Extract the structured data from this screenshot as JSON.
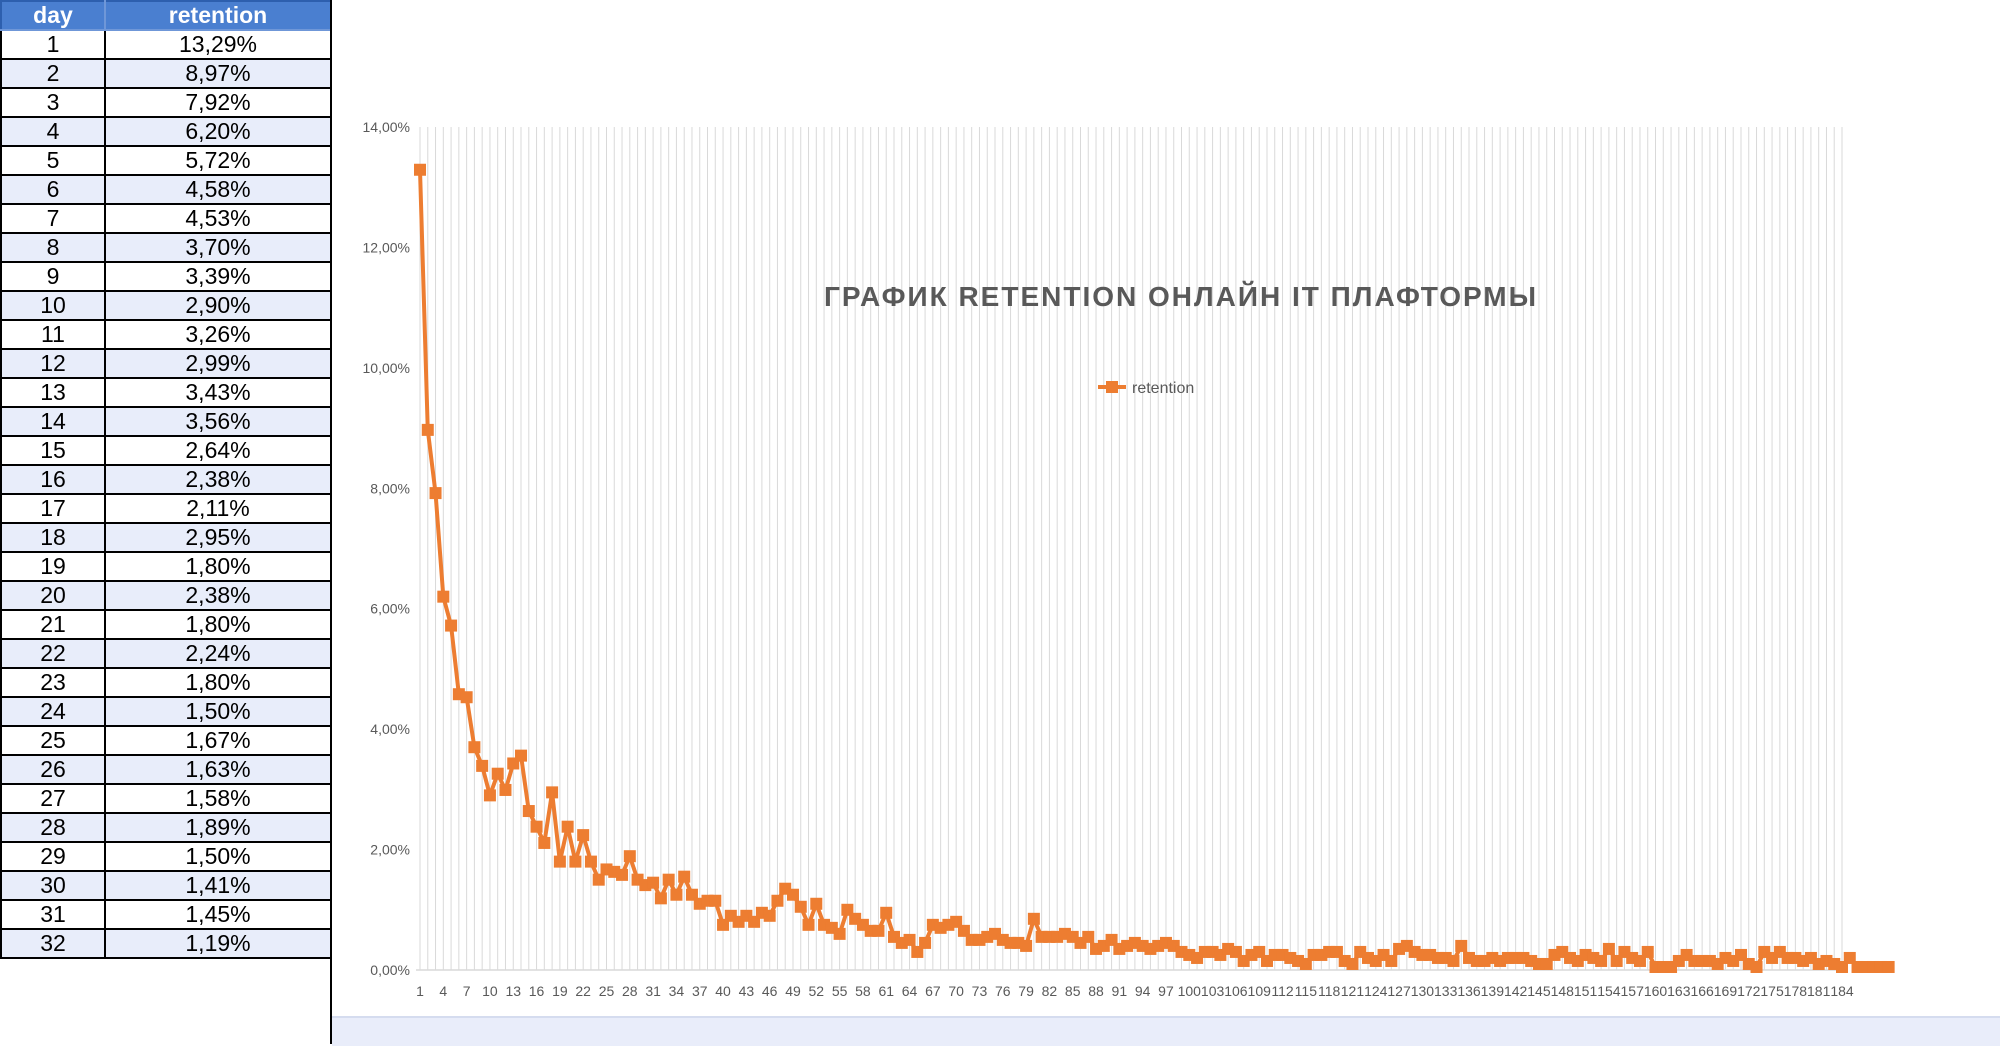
{
  "table": {
    "headers": {
      "day": "day",
      "retention": "retention"
    },
    "rows": [
      {
        "day": "1",
        "retention": "13,29%"
      },
      {
        "day": "2",
        "retention": "8,97%"
      },
      {
        "day": "3",
        "retention": "7,92%"
      },
      {
        "day": "4",
        "retention": "6,20%"
      },
      {
        "day": "5",
        "retention": "5,72%"
      },
      {
        "day": "6",
        "retention": "4,58%"
      },
      {
        "day": "7",
        "retention": "4,53%"
      },
      {
        "day": "8",
        "retention": "3,70%"
      },
      {
        "day": "9",
        "retention": "3,39%"
      },
      {
        "day": "10",
        "retention": "2,90%"
      },
      {
        "day": "11",
        "retention": "3,26%"
      },
      {
        "day": "12",
        "retention": "2,99%"
      },
      {
        "day": "13",
        "retention": "3,43%"
      },
      {
        "day": "14",
        "retention": "3,56%"
      },
      {
        "day": "15",
        "retention": "2,64%"
      },
      {
        "day": "16",
        "retention": "2,38%"
      },
      {
        "day": "17",
        "retention": "2,11%"
      },
      {
        "day": "18",
        "retention": "2,95%"
      },
      {
        "day": "19",
        "retention": "1,80%"
      },
      {
        "day": "20",
        "retention": "2,38%"
      },
      {
        "day": "21",
        "retention": "1,80%"
      },
      {
        "day": "22",
        "retention": "2,24%"
      },
      {
        "day": "23",
        "retention": "1,80%"
      },
      {
        "day": "24",
        "retention": "1,50%"
      },
      {
        "day": "25",
        "retention": "1,67%"
      },
      {
        "day": "26",
        "retention": "1,63%"
      },
      {
        "day": "27",
        "retention": "1,58%"
      },
      {
        "day": "28",
        "retention": "1,89%"
      },
      {
        "day": "29",
        "retention": "1,50%"
      },
      {
        "day": "30",
        "retention": "1,41%"
      },
      {
        "day": "31",
        "retention": "1,45%"
      },
      {
        "day": "32",
        "retention": "1,19%"
      }
    ]
  },
  "chart_data": {
    "type": "line",
    "title": "ГРАФИК RETENTION ОНЛАЙН  IT ПЛАФТОРМЫ",
    "xlabel": "",
    "ylabel": "",
    "ylim": [
      0,
      14
    ],
    "y_ticks": [
      "0,00%",
      "2,00%",
      "4,00%",
      "6,00%",
      "8,00%",
      "10,00%",
      "12,00%",
      "14,00%"
    ],
    "x_range": [
      1,
      184
    ],
    "x_tick_step": 3,
    "grid": "vertical",
    "legend": "top-center",
    "color": "#ed7d31",
    "marker": "square",
    "series": [
      {
        "name": "retention",
        "x_start": 1,
        "values": [
          13.29,
          8.97,
          7.92,
          6.2,
          5.72,
          4.58,
          4.53,
          3.7,
          3.39,
          2.9,
          3.26,
          2.99,
          3.43,
          3.56,
          2.64,
          2.38,
          2.11,
          2.95,
          1.8,
          2.38,
          1.8,
          2.24,
          1.8,
          1.5,
          1.67,
          1.63,
          1.58,
          1.89,
          1.5,
          1.41,
          1.45,
          1.19,
          1.5,
          1.25,
          1.55,
          1.25,
          1.1,
          1.15,
          1.15,
          0.75,
          0.9,
          0.8,
          0.9,
          0.8,
          0.95,
          0.9,
          1.15,
          1.35,
          1.25,
          1.05,
          0.75,
          1.1,
          0.75,
          0.7,
          0.6,
          1.0,
          0.85,
          0.75,
          0.65,
          0.65,
          0.95,
          0.55,
          0.45,
          0.5,
          0.3,
          0.45,
          0.75,
          0.7,
          0.75,
          0.8,
          0.65,
          0.5,
          0.5,
          0.55,
          0.6,
          0.5,
          0.45,
          0.45,
          0.4,
          0.85,
          0.55,
          0.55,
          0.55,
          0.6,
          0.55,
          0.45,
          0.55,
          0.35,
          0.4,
          0.5,
          0.35,
          0.4,
          0.45,
          0.4,
          0.35,
          0.4,
          0.45,
          0.4,
          0.3,
          0.25,
          0.2,
          0.3,
          0.3,
          0.25,
          0.35,
          0.3,
          0.15,
          0.25,
          0.3,
          0.15,
          0.25,
          0.25,
          0.2,
          0.15,
          0.1,
          0.25,
          0.25,
          0.3,
          0.3,
          0.15,
          0.1,
          0.3,
          0.2,
          0.15,
          0.25,
          0.15,
          0.35,
          0.4,
          0.3,
          0.25,
          0.25,
          0.2,
          0.2,
          0.15,
          0.4,
          0.2,
          0.15,
          0.15,
          0.2,
          0.15,
          0.2,
          0.2,
          0.2,
          0.15,
          0.1,
          0.1,
          0.25,
          0.3,
          0.2,
          0.15,
          0.25,
          0.2,
          0.15,
          0.35,
          0.15,
          0.3,
          0.2,
          0.15,
          0.3,
          0.05,
          0.05,
          0.05,
          0.15,
          0.25,
          0.15,
          0.15,
          0.15,
          0.1,
          0.2,
          0.15,
          0.25,
          0.1,
          0.05,
          0.3,
          0.2,
          0.3,
          0.2,
          0.2,
          0.15,
          0.2,
          0.1,
          0.15,
          0.1,
          0.05,
          0.2,
          0.05,
          0.05,
          0.05,
          0.05,
          0.05
        ]
      }
    ]
  }
}
